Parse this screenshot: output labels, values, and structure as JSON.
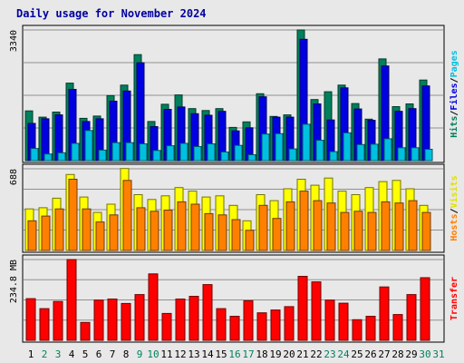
{
  "chart_data": {
    "type": "bar",
    "title": "Daily usage for November 2024",
    "categories": [
      "1",
      "2",
      "3",
      "4",
      "5",
      "6",
      "7",
      "8",
      "9",
      "10",
      "11",
      "12",
      "13",
      "14",
      "15",
      "16",
      "17",
      "18",
      "19",
      "20",
      "21",
      "22",
      "23",
      "24",
      "25",
      "26",
      "27",
      "28",
      "29",
      "30",
      "31"
    ],
    "weekend_days": [
      "2",
      "3",
      "9",
      "10",
      "16",
      "17",
      "23",
      "24",
      "30",
      "31"
    ],
    "panels": [
      {
        "id": "hits-files-pages",
        "ylabel_parts": [
          "Hits",
          "Files",
          "Pages"
        ],
        "ylabel_colors": [
          "#00805c",
          "#0000e0",
          "#00c0e0"
        ],
        "max_tick_label": "3340",
        "ylim": [
          0,
          3340
        ],
        "series": [
          {
            "name": "Hits",
            "color": "#00805c",
            "values": [
              1270,
              1110,
              1240,
              1980,
              1080,
              1140,
              1660,
              1930,
              2710,
              1000,
              1440,
              1680,
              1330,
              1280,
              1330,
              850,
              990,
              1710,
              1130,
              1170,
              3340,
              1560,
              1760,
              1930,
              1460,
              1060,
              2600,
              1380,
              1450,
              2060,
              0
            ]
          },
          {
            "name": "Files",
            "color": "#0000e0",
            "values": [
              950,
              1070,
              1170,
              1820,
              1000,
              1070,
              1520,
              1780,
              2500,
              870,
              1310,
              1370,
              1200,
              1160,
              1260,
              760,
              840,
              1630,
              1110,
              1110,
              3100,
              1450,
              1040,
              1860,
              1320,
              1030,
              2420,
              1260,
              1330,
              1910,
              0
            ]
          },
          {
            "name": "Pages",
            "color": "#00c0e0",
            "values": [
              310,
              170,
              200,
              440,
              770,
              270,
              460,
              460,
              430,
              260,
              380,
              440,
              360,
              430,
              220,
              390,
              150,
              680,
              690,
              300,
              930,
              520,
              230,
              710,
              410,
              420,
              560,
              330,
              330,
              290,
              0
            ]
          }
        ]
      },
      {
        "id": "visits-hosts",
        "ylabel_parts": [
          "Hosts",
          "Visits"
        ],
        "ylabel_colors": [
          "#ff8000",
          "#e0e000"
        ],
        "max_tick_label": "688",
        "ylim": [
          0,
          688
        ],
        "series": [
          {
            "name": "Visits",
            "color": "#ffff00",
            "values": [
              350,
              360,
              440,
              640,
              450,
              320,
              390,
              690,
              470,
              430,
              460,
              530,
              500,
              450,
              460,
              380,
              250,
              470,
              420,
              520,
              600,
              550,
              610,
              500,
              470,
              530,
              580,
              590,
              520,
              380,
              0
            ]
          },
          {
            "name": "Hosts",
            "color": "#ff8000",
            "values": [
              250,
              290,
              350,
              600,
              350,
              240,
              300,
              590,
              360,
              330,
              340,
              410,
              390,
              310,
              300,
              260,
              170,
              380,
              270,
              410,
              500,
              420,
              400,
              320,
              330,
              320,
              410,
              400,
              420,
              320,
              0
            ]
          }
        ]
      },
      {
        "id": "transfer",
        "ylabel_parts": [
          "Transfer"
        ],
        "ylabel_colors": [
          "#ff0000"
        ],
        "max_tick_label": "234.8 MB",
        "ylim": [
          0,
          234.8
        ],
        "series": [
          {
            "name": "Transfer",
            "color": "#ff0000",
            "values": [
              121,
              92,
              113,
              234.8,
              52,
              117,
              120,
              107,
              133,
              193,
              78,
              120,
              128,
              162,
              92,
              70,
              115,
              80,
              88,
              98,
              186,
              170,
              117,
              108,
              60,
              70,
              155,
              75,
              133,
              182,
              0
            ]
          }
        ]
      }
    ]
  }
}
